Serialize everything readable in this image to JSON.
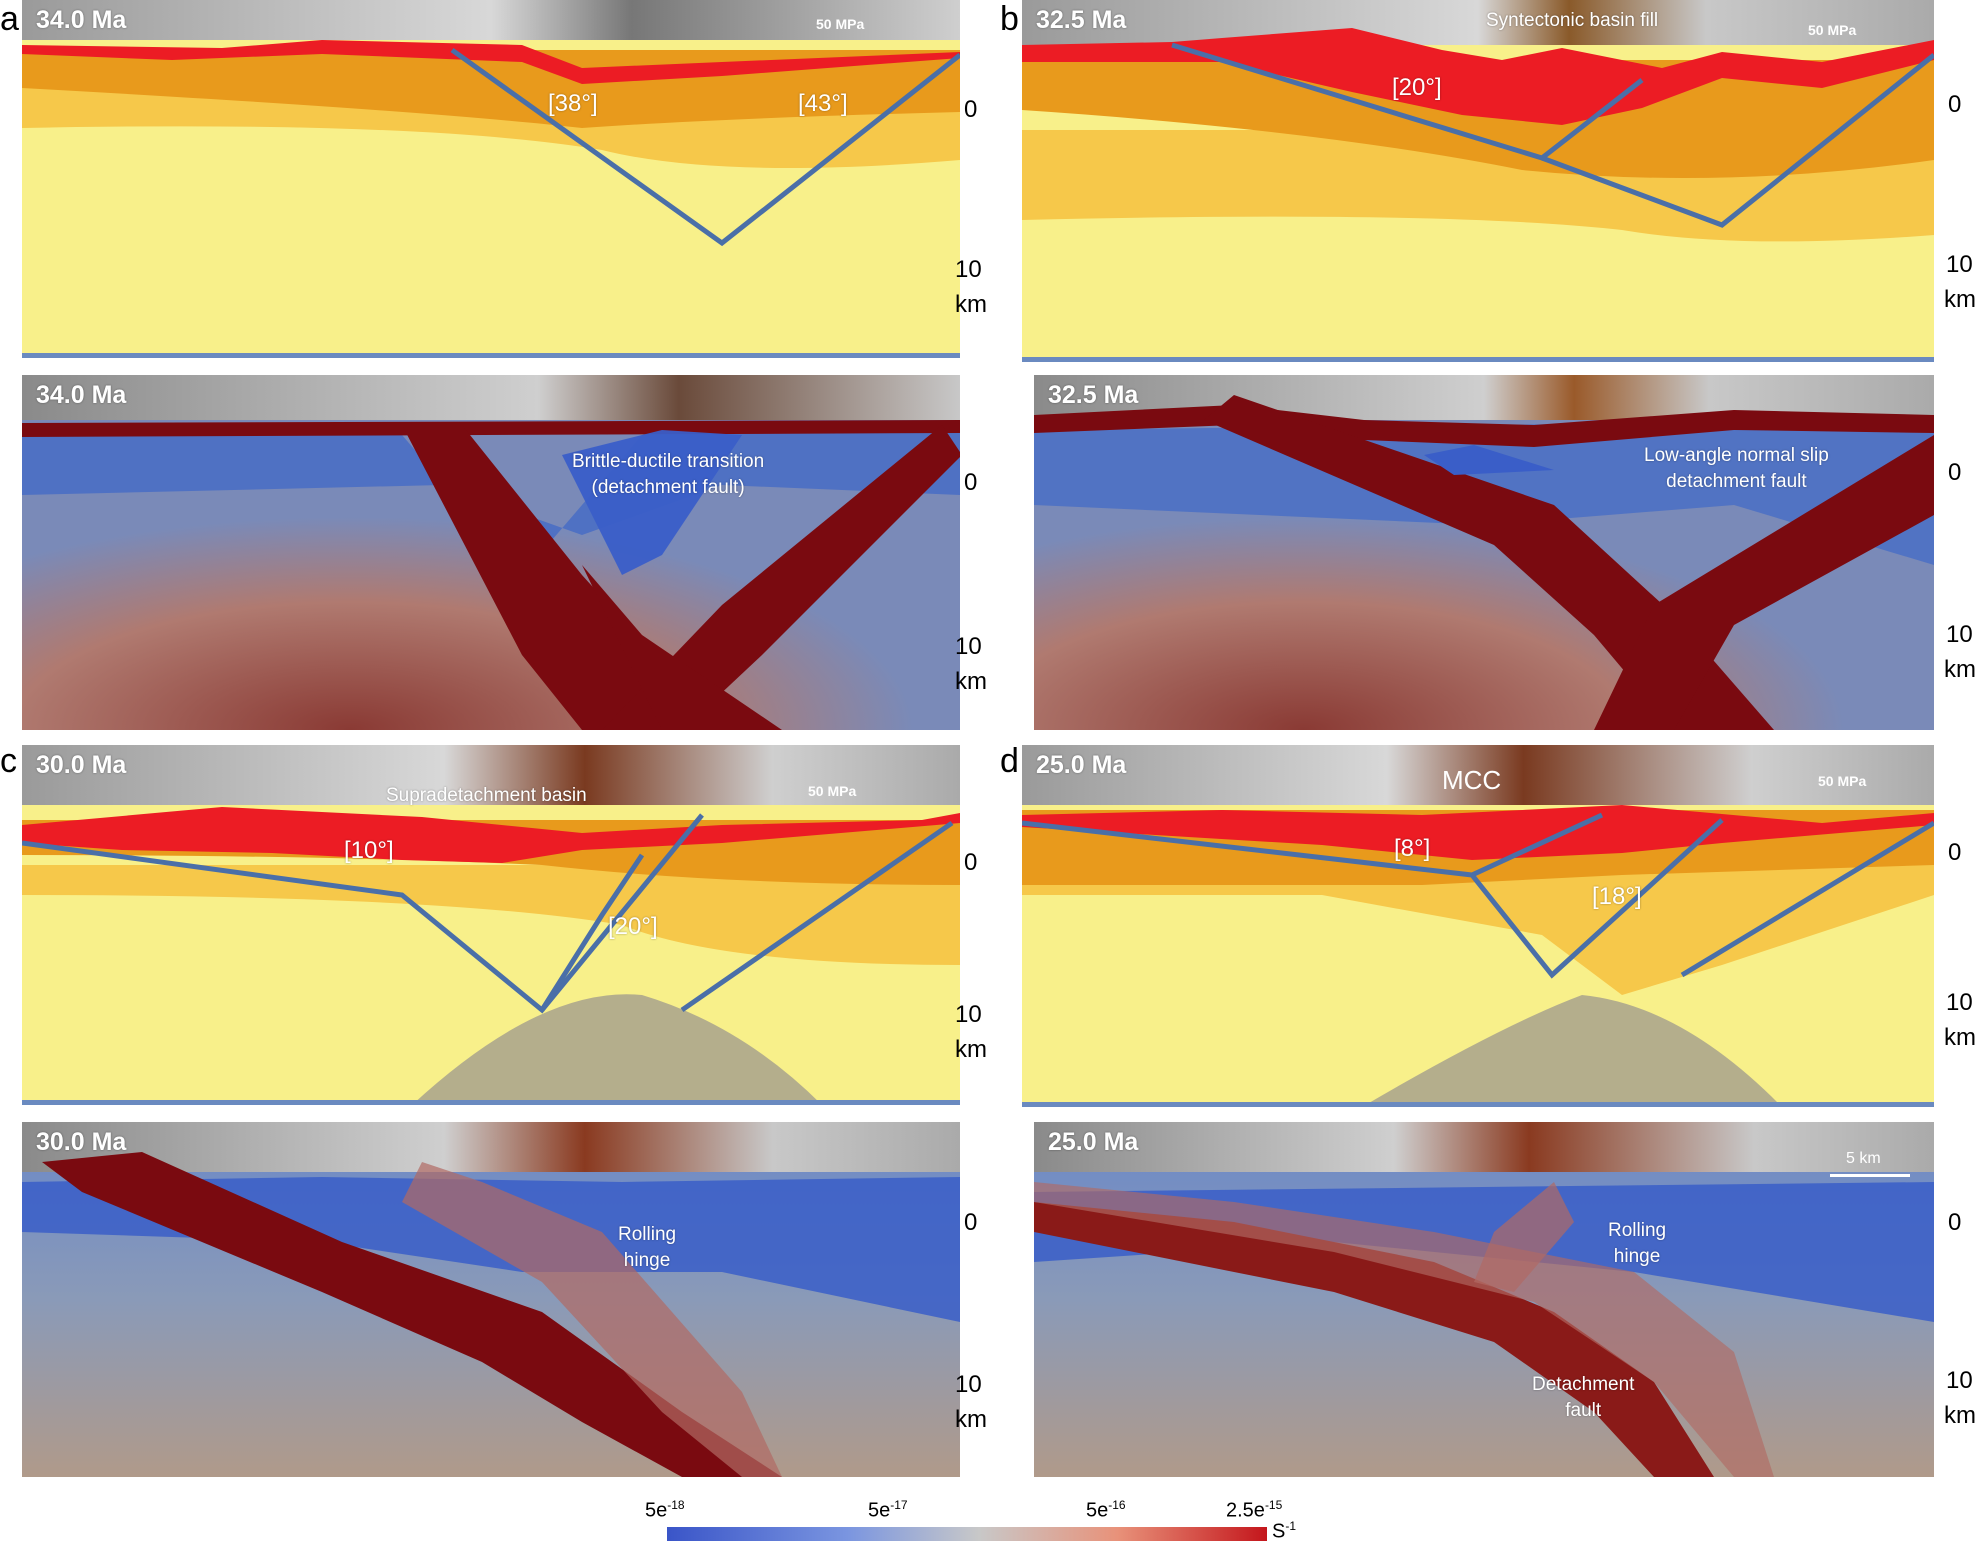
{
  "panels": [
    {
      "letter": "a",
      "top": {
        "time": "34.0 Ma",
        "stress": "50 MPa",
        "angles": [
          "[38°]",
          "[43°]"
        ]
      },
      "bottom": {
        "time": "34.0 Ma",
        "annotation": "Brittle-ductile transition\n(detachment fault)"
      }
    },
    {
      "letter": "b",
      "top": {
        "time": "32.5 Ma",
        "stress": "50 MPa",
        "angles": [
          "[20°]"
        ],
        "annotation": "Syntectonic basin fill"
      },
      "bottom": {
        "time": "32.5 Ma",
        "annotation": "Low-angle normal slip\ndetachment fault"
      }
    },
    {
      "letter": "c",
      "top": {
        "time": "30.0 Ma",
        "stress": "50 MPa",
        "angles": [
          "[10°]",
          "[20°]"
        ],
        "annotation": "Supradetachment  basin"
      },
      "bottom": {
        "time": "30.0 Ma",
        "annotation": "Rolling\nhinge"
      }
    },
    {
      "letter": "d",
      "top": {
        "time": "25.0 Ma",
        "stress": "50 MPa",
        "angles": [
          "[8°]",
          "[18°]"
        ],
        "annotation": "MCC"
      },
      "bottom": {
        "time": "25.0 Ma",
        "annotation_1": "Rolling\nhinge",
        "annotation_2": "Detachment\nfault",
        "scale": "5 km"
      }
    }
  ],
  "depth_labels": {
    "top": "0",
    "mid": "10",
    "unit": "km"
  },
  "colorbar": {
    "ticks": [
      "5e",
      "5e",
      "5e",
      "2.5e"
    ],
    "exponents": [
      "-18",
      "-17",
      "-16",
      "-15"
    ],
    "unit": "S",
    "unit_exp": "-1"
  },
  "colors": {
    "sediment": "#ec1c24",
    "upper_crust": "#e89a1c",
    "mid_crust": "#f6c84a",
    "lower_crust": "#f8f08a",
    "mantle": "#b4ae8c",
    "fault": "#4a6fa8",
    "shear_zone": "#7a0a10",
    "cold": "#3a5ec8"
  }
}
